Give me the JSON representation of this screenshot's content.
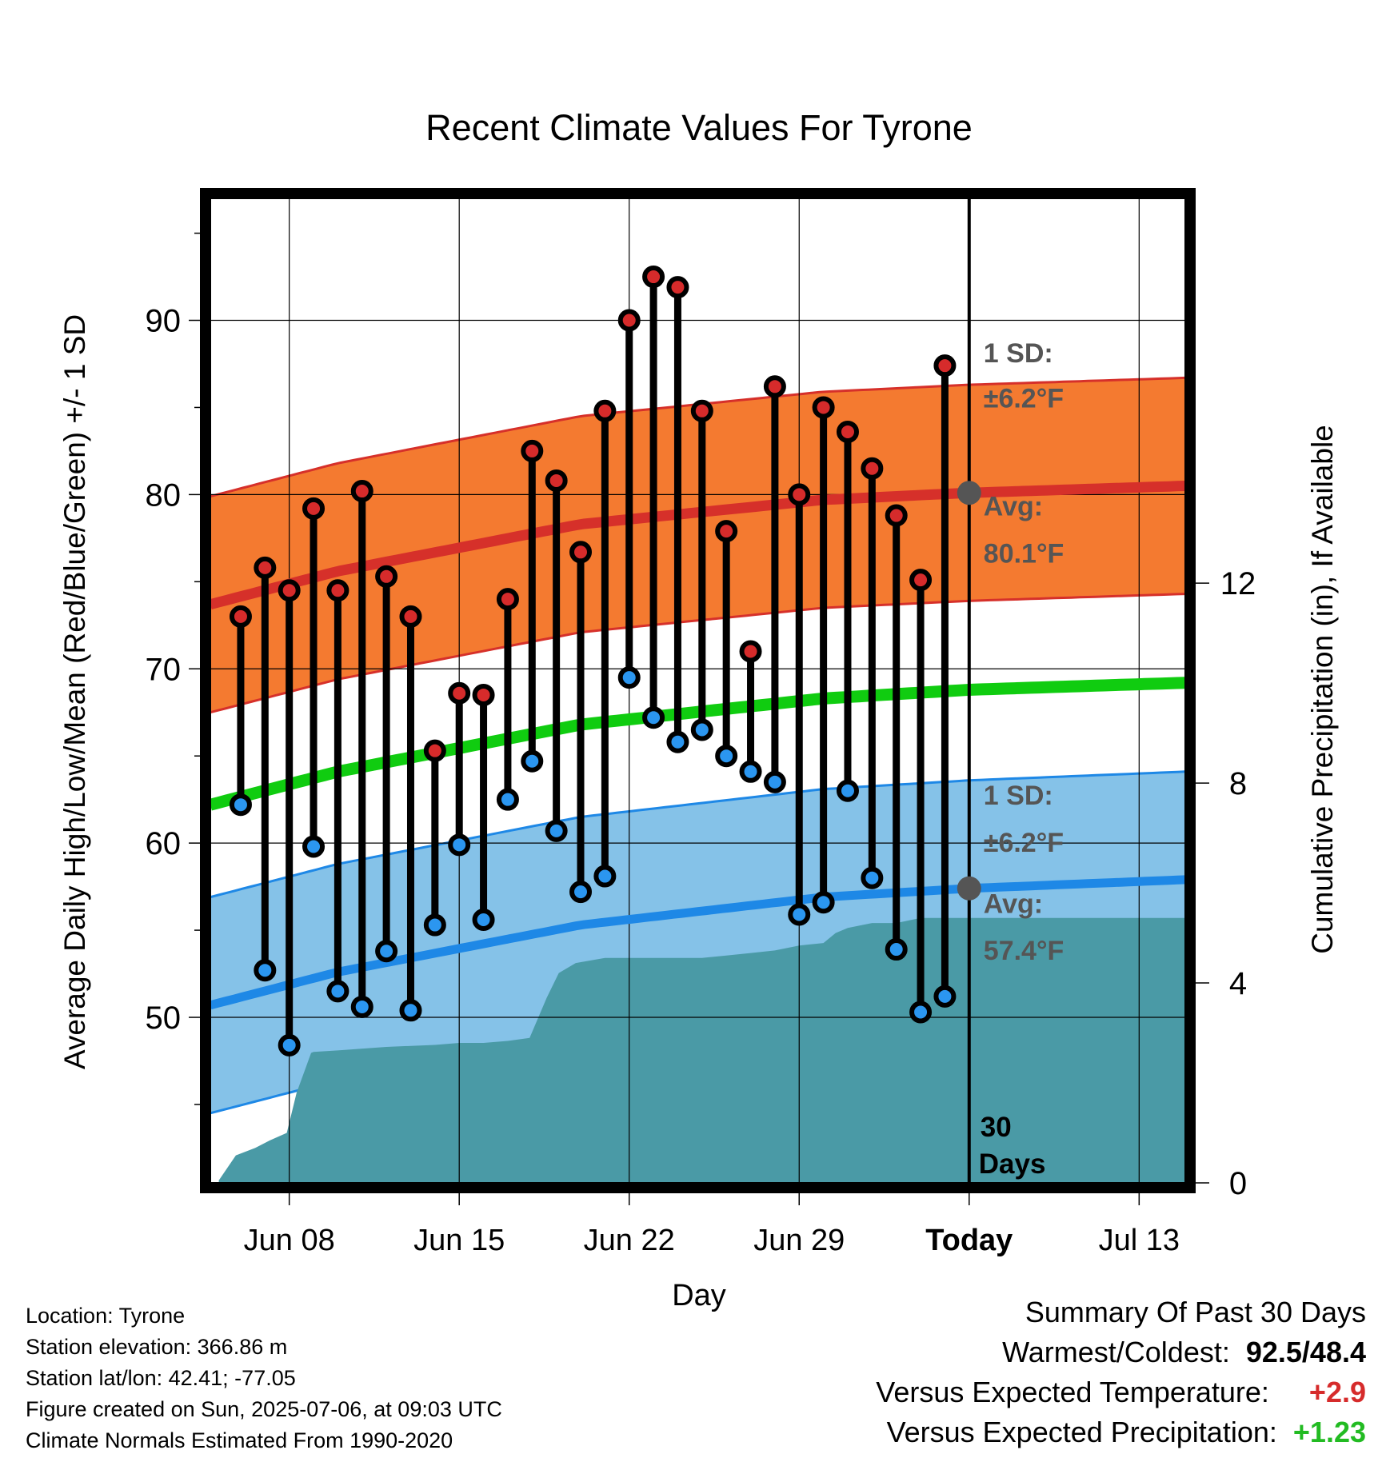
{
  "chart_data": {
    "type": "line",
    "title": "Recent Climate Values For Tyrone",
    "xlabel": "Day",
    "ylabel": "Average Daily High/Low/Mean (Red/Blue/Green) +/- 1 SD",
    "y2label": "Cumulative Precipitation (in), If Available",
    "ylim": [
      40.5,
      97
    ],
    "y2lim": [
      0,
      19.7
    ],
    "yticks": [
      50,
      60,
      70,
      80,
      90
    ],
    "y2ticks": [
      0,
      4,
      8,
      12
    ],
    "xticks": [
      "Jun 08",
      "Jun 15",
      "Jun 22",
      "Jun 29",
      "Today",
      "Jul 13"
    ],
    "xtick_days": [
      8,
      15,
      22,
      29,
      36,
      43
    ],
    "xlim": [
      4.75,
      44.9
    ],
    "grid": true,
    "today_day": 36,
    "today_label": "30 Days",
    "days": [
      6,
      7,
      8,
      9,
      10,
      11,
      12,
      13,
      14,
      15,
      16,
      17,
      18,
      19,
      20,
      21,
      22,
      23,
      24,
      25,
      26,
      27,
      28,
      29,
      30,
      31,
      32,
      33,
      34,
      35
    ],
    "highs": [
      73.0,
      75.8,
      74.5,
      79.2,
      74.5,
      80.2,
      75.3,
      73.0,
      65.3,
      68.6,
      68.5,
      74.0,
      82.5,
      80.8,
      76.7,
      84.8,
      90.0,
      92.5,
      91.9,
      84.8,
      77.9,
      71.0,
      86.2,
      80.0,
      85.0,
      83.6,
      81.5,
      78.8,
      75.1,
      87.4
    ],
    "lows": [
      62.2,
      52.7,
      48.4,
      59.8,
      51.5,
      50.6,
      53.8,
      50.4,
      55.3,
      59.9,
      55.6,
      62.5,
      64.7,
      60.7,
      57.2,
      58.1,
      69.5,
      67.2,
      65.8,
      66.5,
      65.0,
      64.1,
      63.5,
      55.9,
      56.6,
      63.0,
      58.0,
      53.9,
      50.3,
      51.2
    ]
  },
  "normals": {
    "series": [
      {
        "name": "Avg High",
        "x": [
          4.75,
          10,
          20,
          30,
          36,
          44.9
        ],
        "values": [
          73.7,
          75.6,
          78.3,
          79.7,
          80.1,
          80.5
        ]
      },
      {
        "name": "Avg Low",
        "x": [
          4.75,
          10,
          20,
          30,
          36,
          44.9
        ],
        "values": [
          50.7,
          52.6,
          55.3,
          56.9,
          57.4,
          57.9
        ]
      },
      {
        "name": "Avg Mean",
        "x": [
          4.75,
          10,
          20,
          30,
          36,
          44.9
        ],
        "values": [
          62.2,
          64.1,
          66.8,
          68.3,
          68.8,
          69.2
        ]
      }
    ],
    "sd": 6.2,
    "high_sd_label": [
      "1 SD:",
      "±6.2°F"
    ],
    "high_avg_label": [
      "Avg:",
      "80.1°F"
    ],
    "low_sd_label": [
      "1 SD:",
      "±6.2°F"
    ],
    "low_avg_label": [
      "Avg:",
      "57.4°F"
    ],
    "high_today": 80.1,
    "low_today": 57.4
  },
  "precip": {
    "x": [
      5.1,
      5.8,
      6.6,
      7.2,
      7.9,
      8.3,
      8.9,
      9.0,
      10,
      12,
      14,
      15,
      16,
      17,
      17.9,
      18.6,
      19.1,
      19.8,
      21,
      23,
      25,
      26,
      27,
      28,
      29,
      30,
      30.5,
      31,
      32,
      33,
      34,
      44.9
    ],
    "cumulative": [
      0.05,
      0.55,
      0.7,
      0.85,
      1.0,
      1.8,
      2.6,
      2.62,
      2.65,
      2.72,
      2.76,
      2.8,
      2.8,
      2.84,
      2.9,
      3.7,
      4.2,
      4.4,
      4.5,
      4.5,
      4.5,
      4.55,
      4.6,
      4.65,
      4.75,
      4.8,
      5.0,
      5.1,
      5.2,
      5.2,
      5.3,
      5.3
    ]
  },
  "colors": {
    "high_band": "#f47a30",
    "high_line": "#d6302a",
    "low_band": "#85c2e8",
    "low_line": "#1e88e6",
    "mean_line": "#10cc10",
    "precip_fill": "#4a9aa6",
    "high_dot": "#d62b2b",
    "low_dot": "#2b96f0",
    "today_marker": "#555555",
    "annotation_text": "#555555",
    "positive_temp": "#d62b2b",
    "positive_precip": "#22bb22"
  },
  "info": {
    "location": "Location: Tyrone",
    "elevation": "Station elevation: 366.86 m",
    "latlon": "Station lat/lon: 42.41; -77.05",
    "created": "Figure created on Sun, 2025-07-06, at 09:03 UTC",
    "normals": "Climate Normals Estimated From 1990-2020"
  },
  "summary": {
    "heading": "Summary Of Past 30 Days",
    "warm_cold_label": "Warmest/Coldest:",
    "warm_cold_value": "92.5/48.4",
    "temp_label": "Versus Expected Temperature:",
    "temp_value": "+2.9",
    "precip_label": "Versus Expected Precipitation:",
    "precip_value": "+1.23"
  }
}
